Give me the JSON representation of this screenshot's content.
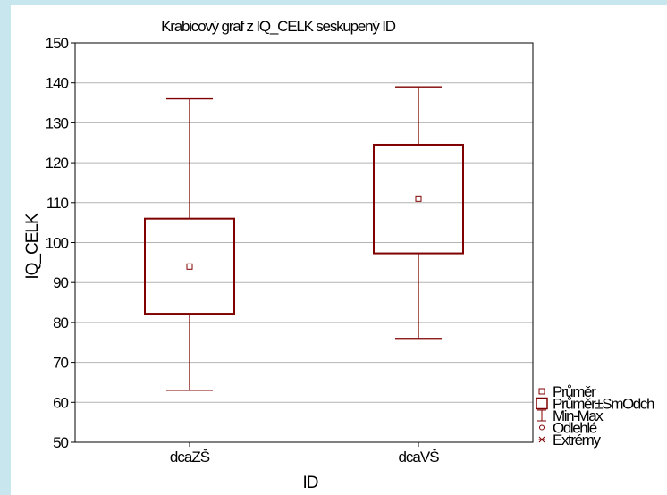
{
  "chart_data": {
    "type": "boxplot",
    "title": "Krabicový graf z IQ_CELK seskupený ID",
    "xlabel": "ID",
    "ylabel": "IQ_CELK",
    "ylim": [
      50,
      150
    ],
    "yticks": [
      50,
      60,
      70,
      80,
      90,
      100,
      110,
      120,
      130,
      140,
      150
    ],
    "grid": true,
    "legend_position": "bottom-right",
    "categories": [
      "dcaZŠ",
      "dcaVŠ"
    ],
    "boxes": [
      {
        "category": "dcaZŠ",
        "min": 63,
        "q1": 82.2,
        "mean": 94,
        "q3": 106,
        "max": 136
      },
      {
        "category": "dcaVŠ",
        "min": 76,
        "q1": 97.3,
        "mean": 111,
        "q3": 124.5,
        "max": 139
      }
    ],
    "legend": [
      {
        "symbol": "small-square-icon",
        "label": "Průměr"
      },
      {
        "symbol": "box-icon",
        "label": "Průměr±SmOdch"
      },
      {
        "symbol": "whisker-icon",
        "label": "Min-Max"
      },
      {
        "symbol": "circle-icon",
        "label": "Odlehlé"
      },
      {
        "symbol": "asterisk-icon",
        "label": "Extrémy"
      }
    ],
    "colors": {
      "box": "#800000",
      "grid": "#b4b4b4",
      "background": "#c8e6ee"
    }
  }
}
